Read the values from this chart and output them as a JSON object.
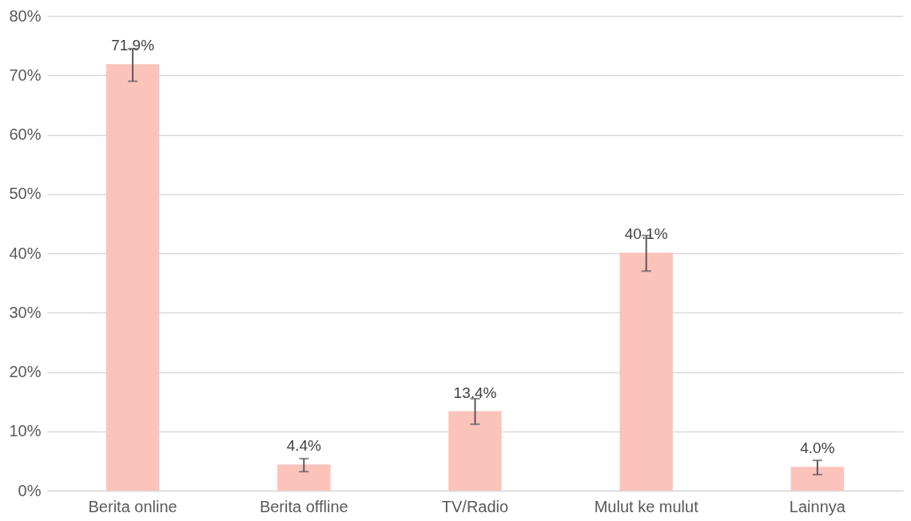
{
  "chart_data": {
    "type": "bar",
    "categories": [
      "Berita online",
      "Berita offline",
      "TV/Radio",
      "Mulut ke mulut",
      "Lainnya"
    ],
    "values": [
      71.9,
      4.4,
      13.4,
      40.1,
      4.0
    ],
    "value_labels": [
      "71.9%",
      "4.4%",
      "13.4%",
      "40.1%",
      "4.0%"
    ],
    "errors": [
      [
        69.0,
        74.5
      ],
      [
        3.2,
        5.4
      ],
      [
        11.2,
        15.5
      ],
      [
        37.0,
        43.0
      ],
      [
        2.7,
        5.1
      ]
    ],
    "color": "#fcc3bb",
    "ylim": [
      0,
      80
    ],
    "yticks": [
      {
        "value": 0,
        "label": "0%"
      },
      {
        "value": 10,
        "label": "10%"
      },
      {
        "value": 20,
        "label": "20%"
      },
      {
        "value": 30,
        "label": "30%"
      },
      {
        "value": 40,
        "label": "40%"
      },
      {
        "value": 50,
        "label": "50%"
      },
      {
        "value": 60,
        "label": "60%"
      },
      {
        "value": 70,
        "label": "70%"
      },
      {
        "value": 80,
        "label": "80%"
      }
    ],
    "grid": "y"
  }
}
